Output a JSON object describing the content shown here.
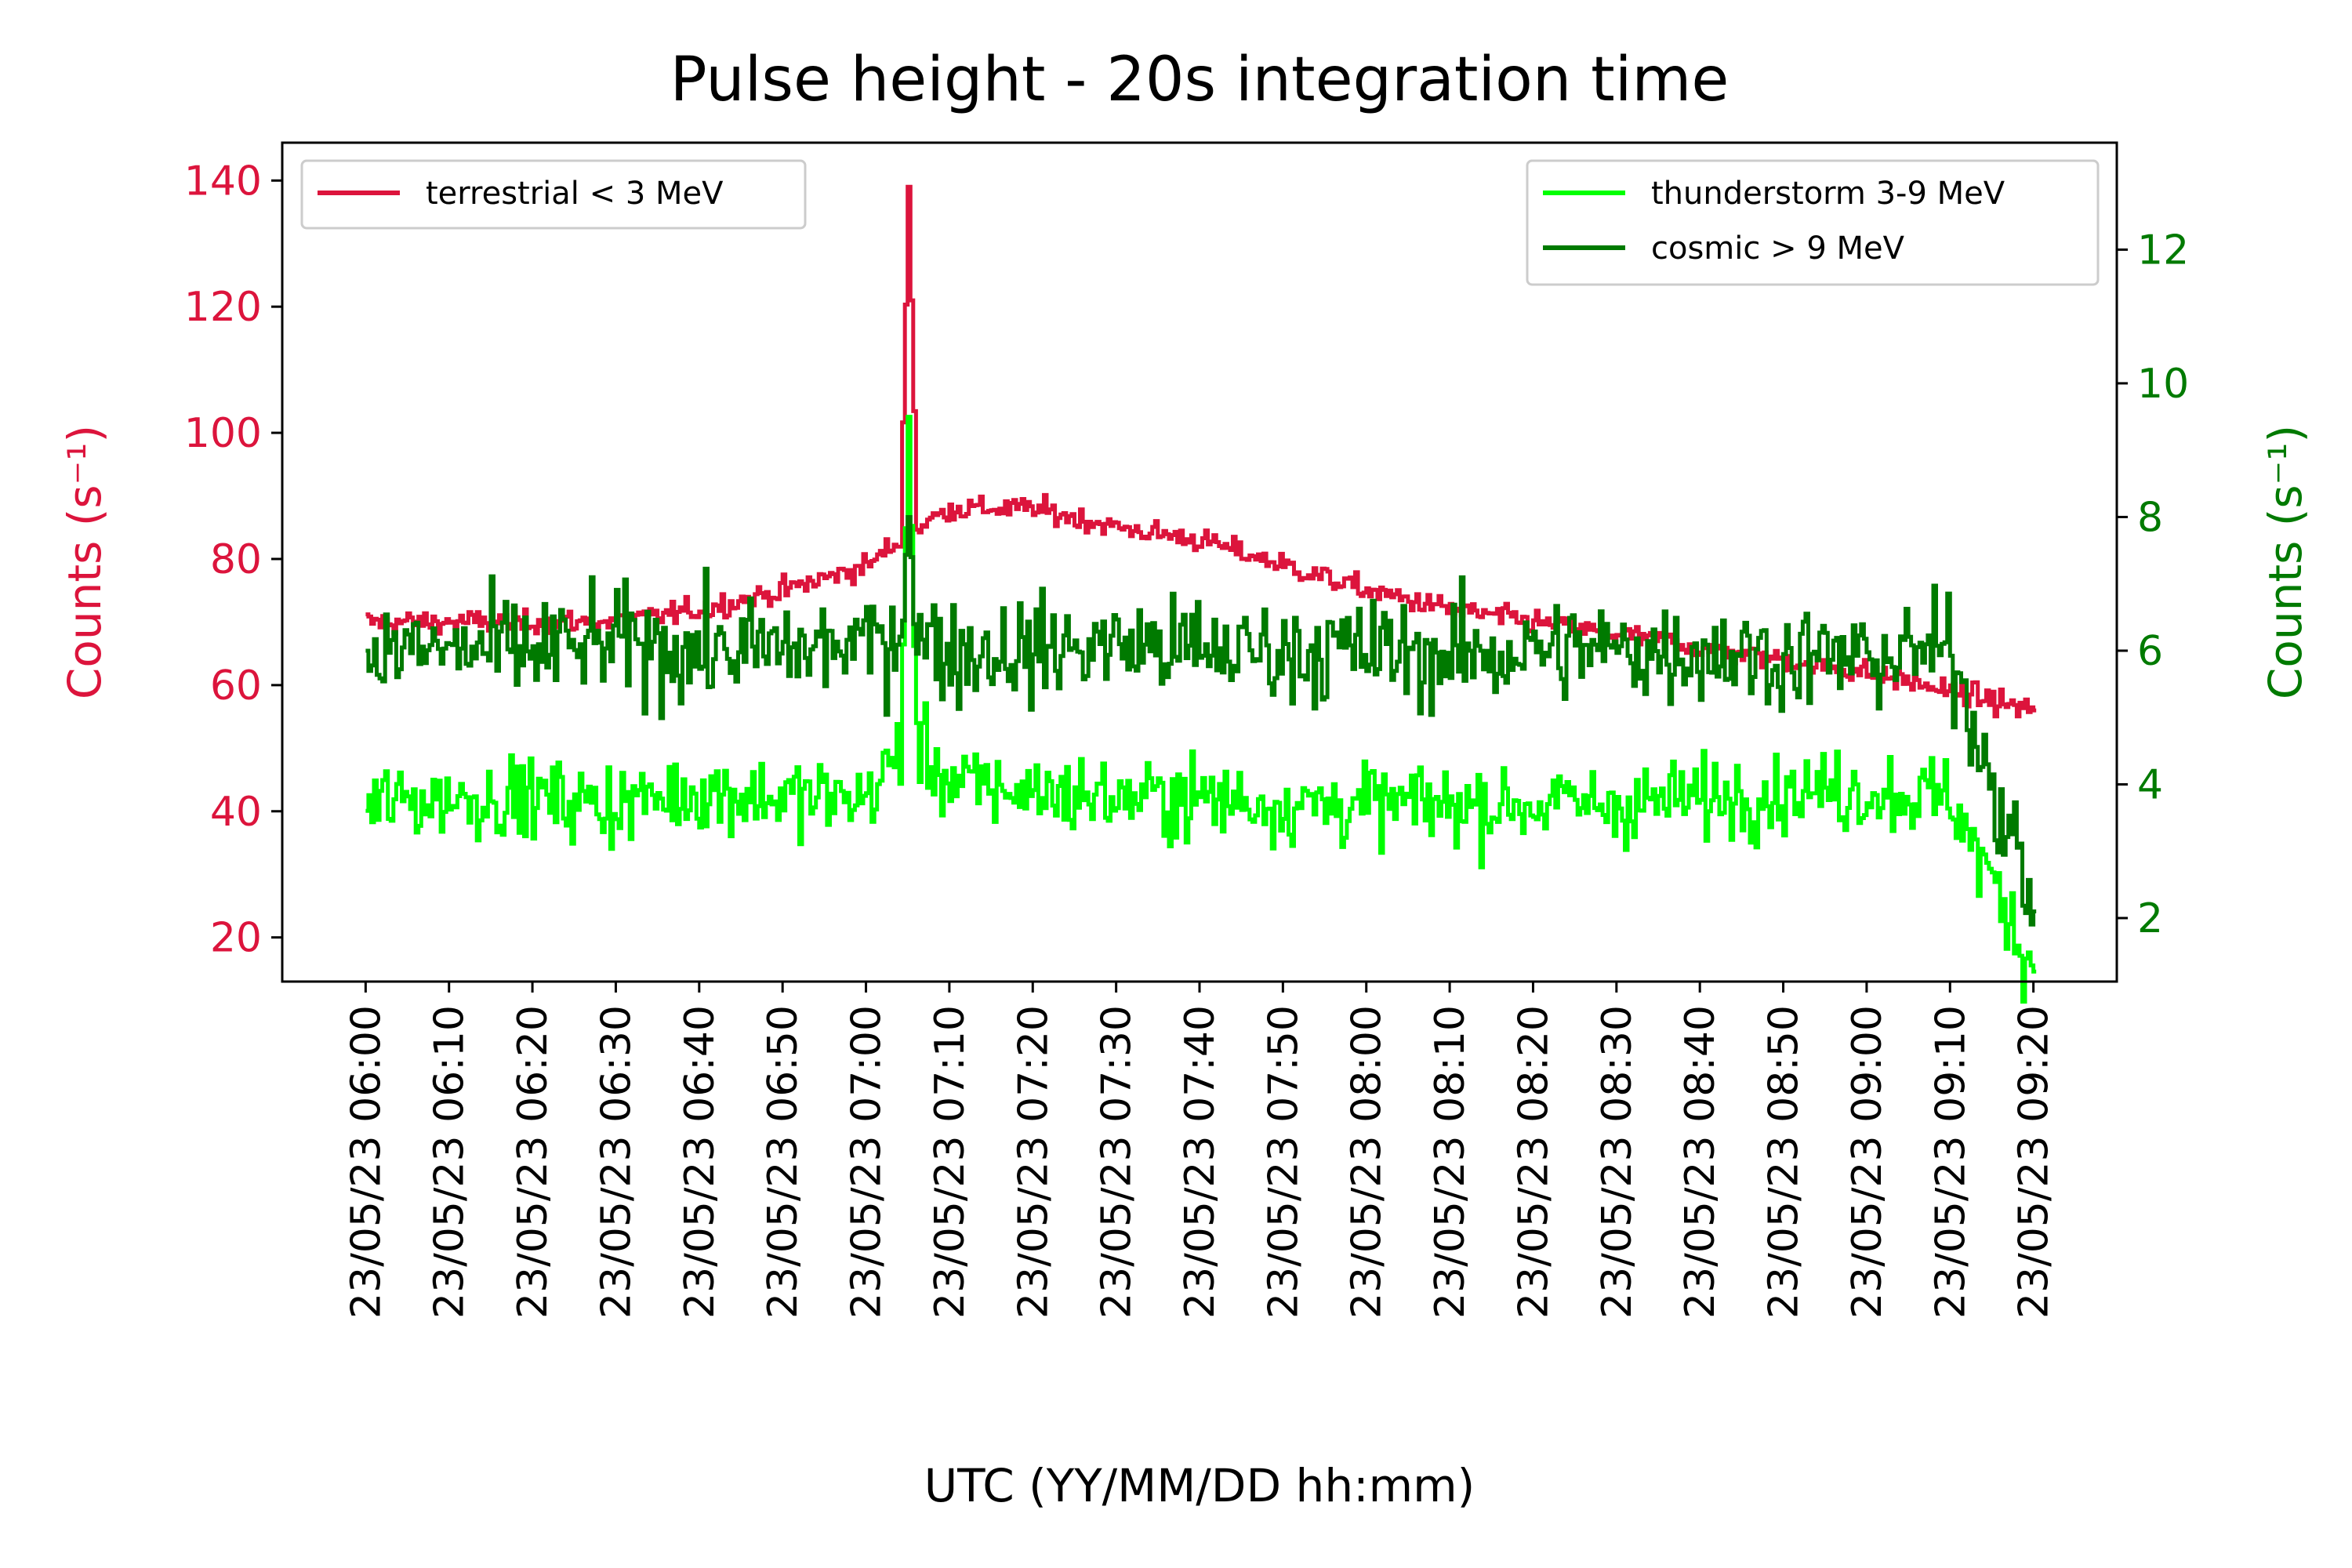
{
  "chart_data": {
    "type": "line",
    "title": "Pulse height - 20s integration time",
    "xlabel": "UTC (YY/MM/DD hh:mm)",
    "ylabel_left": "Counts (s⁻¹)",
    "ylabel_right": "Counts (s⁻¹)",
    "x_ticks": [
      "23/05/23 06:00",
      "23/05/23 06:10",
      "23/05/23 06:20",
      "23/05/23 06:30",
      "23/05/23 06:40",
      "23/05/23 06:50",
      "23/05/23 07:00",
      "23/05/23 07:10",
      "23/05/23 07:20",
      "23/05/23 07:30",
      "23/05/23 07:40",
      "23/05/23 07:50",
      "23/05/23 08:00",
      "23/05/23 08:10",
      "23/05/23 08:20",
      "23/05/23 08:30",
      "23/05/23 08:40",
      "23/05/23 08:50",
      "23/05/23 09:00",
      "23/05/23 09:10",
      "23/05/23 09:20"
    ],
    "xlim": [
      "23/05/23 05:50",
      "23/05/23 09:30"
    ],
    "ylim_left": [
      13,
      146
    ],
    "ylim_right": [
      1.05,
      13.6
    ],
    "yticks_left": [
      20,
      40,
      60,
      80,
      100,
      120,
      140
    ],
    "yticks_right": [
      2,
      4,
      6,
      8,
      10,
      12
    ],
    "colors": {
      "left_axis": "#dc143c",
      "right_axis": "#007a00",
      "terrestrial": "#dc143c",
      "thunderstorm": "#00ff00",
      "cosmic": "#007a00"
    },
    "grid": false,
    "legend_left_position": "upper-left",
    "legend_right_position": "upper-right",
    "series": [
      {
        "name": "terrestrial < 3 MeV",
        "axis": "left",
        "color": "#dc143c",
        "step": "10 min",
        "x": [
          "23/05/23 06:00",
          "23/05/23 06:10",
          "23/05/23 06:20",
          "23/05/23 06:30",
          "23/05/23 06:40",
          "23/05/23 06:50",
          "23/05/23 07:00",
          "23/05/23 07:04",
          "23/05/23 07:05",
          "23/05/23 07:06",
          "23/05/23 07:10",
          "23/05/23 07:20",
          "23/05/23 07:30",
          "23/05/23 07:40",
          "23/05/23 07:50",
          "23/05/23 08:00",
          "23/05/23 08:10",
          "23/05/23 08:20",
          "23/05/23 08:30",
          "23/05/23 08:40",
          "23/05/23 08:50",
          "23/05/23 09:00",
          "23/05/23 09:10",
          "23/05/23 09:20"
        ],
        "values": [
          70,
          70,
          70,
          70,
          72,
          75,
          79,
          83,
          139,
          85,
          88,
          88,
          85,
          83,
          79,
          75,
          72,
          70,
          68,
          66,
          64,
          62,
          59,
          56
        ]
      },
      {
        "name": "thunderstorm 3-9 MeV",
        "axis": "right",
        "color": "#00ff00",
        "step": "10 min",
        "x": [
          "23/05/23 06:00",
          "23/05/23 06:10",
          "23/05/23 06:20",
          "23/05/23 06:30",
          "23/05/23 06:40",
          "23/05/23 06:50",
          "23/05/23 07:00",
          "23/05/23 07:04",
          "23/05/23 07:05",
          "23/05/23 07:06",
          "23/05/23 07:10",
          "23/05/23 07:20",
          "23/05/23 07:30",
          "23/05/23 07:40",
          "23/05/23 07:50",
          "23/05/23 08:00",
          "23/05/23 08:10",
          "23/05/23 08:20",
          "23/05/23 08:30",
          "23/05/23 08:40",
          "23/05/23 08:50",
          "23/05/23 09:00",
          "23/05/23 09:10",
          "23/05/23 09:20"
        ],
        "values": [
          3.7,
          3.8,
          3.8,
          3.7,
          3.9,
          3.8,
          3.8,
          4.5,
          9.5,
          4.6,
          4.0,
          3.9,
          3.8,
          3.8,
          3.7,
          3.7,
          3.7,
          3.7,
          3.7,
          3.8,
          3.9,
          3.9,
          3.8,
          1.2
        ]
      },
      {
        "name": "cosmic > 9 MeV",
        "axis": "right",
        "color": "#007a00",
        "step": "10 min",
        "x": [
          "23/05/23 06:00",
          "23/05/23 06:10",
          "23/05/23 06:20",
          "23/05/23 06:30",
          "23/05/23 06:40",
          "23/05/23 06:50",
          "23/05/23 07:00",
          "23/05/23 07:04",
          "23/05/23 07:05",
          "23/05/23 07:06",
          "23/05/23 07:10",
          "23/05/23 07:20",
          "23/05/23 07:30",
          "23/05/23 07:40",
          "23/05/23 07:50",
          "23/05/23 08:00",
          "23/05/23 08:10",
          "23/05/23 08:20",
          "23/05/23 08:30",
          "23/05/23 08:40",
          "23/05/23 08:50",
          "23/05/23 09:00",
          "23/05/23 09:10",
          "23/05/23 09:20"
        ],
        "values": [
          6.0,
          6.0,
          6.0,
          6.1,
          6.0,
          6.0,
          6.1,
          6.3,
          8.0,
          6.2,
          6.0,
          6.0,
          6.1,
          6.0,
          6.0,
          6.0,
          5.9,
          6.0,
          6.0,
          6.0,
          5.9,
          5.9,
          6.0,
          2.1
        ]
      }
    ]
  }
}
